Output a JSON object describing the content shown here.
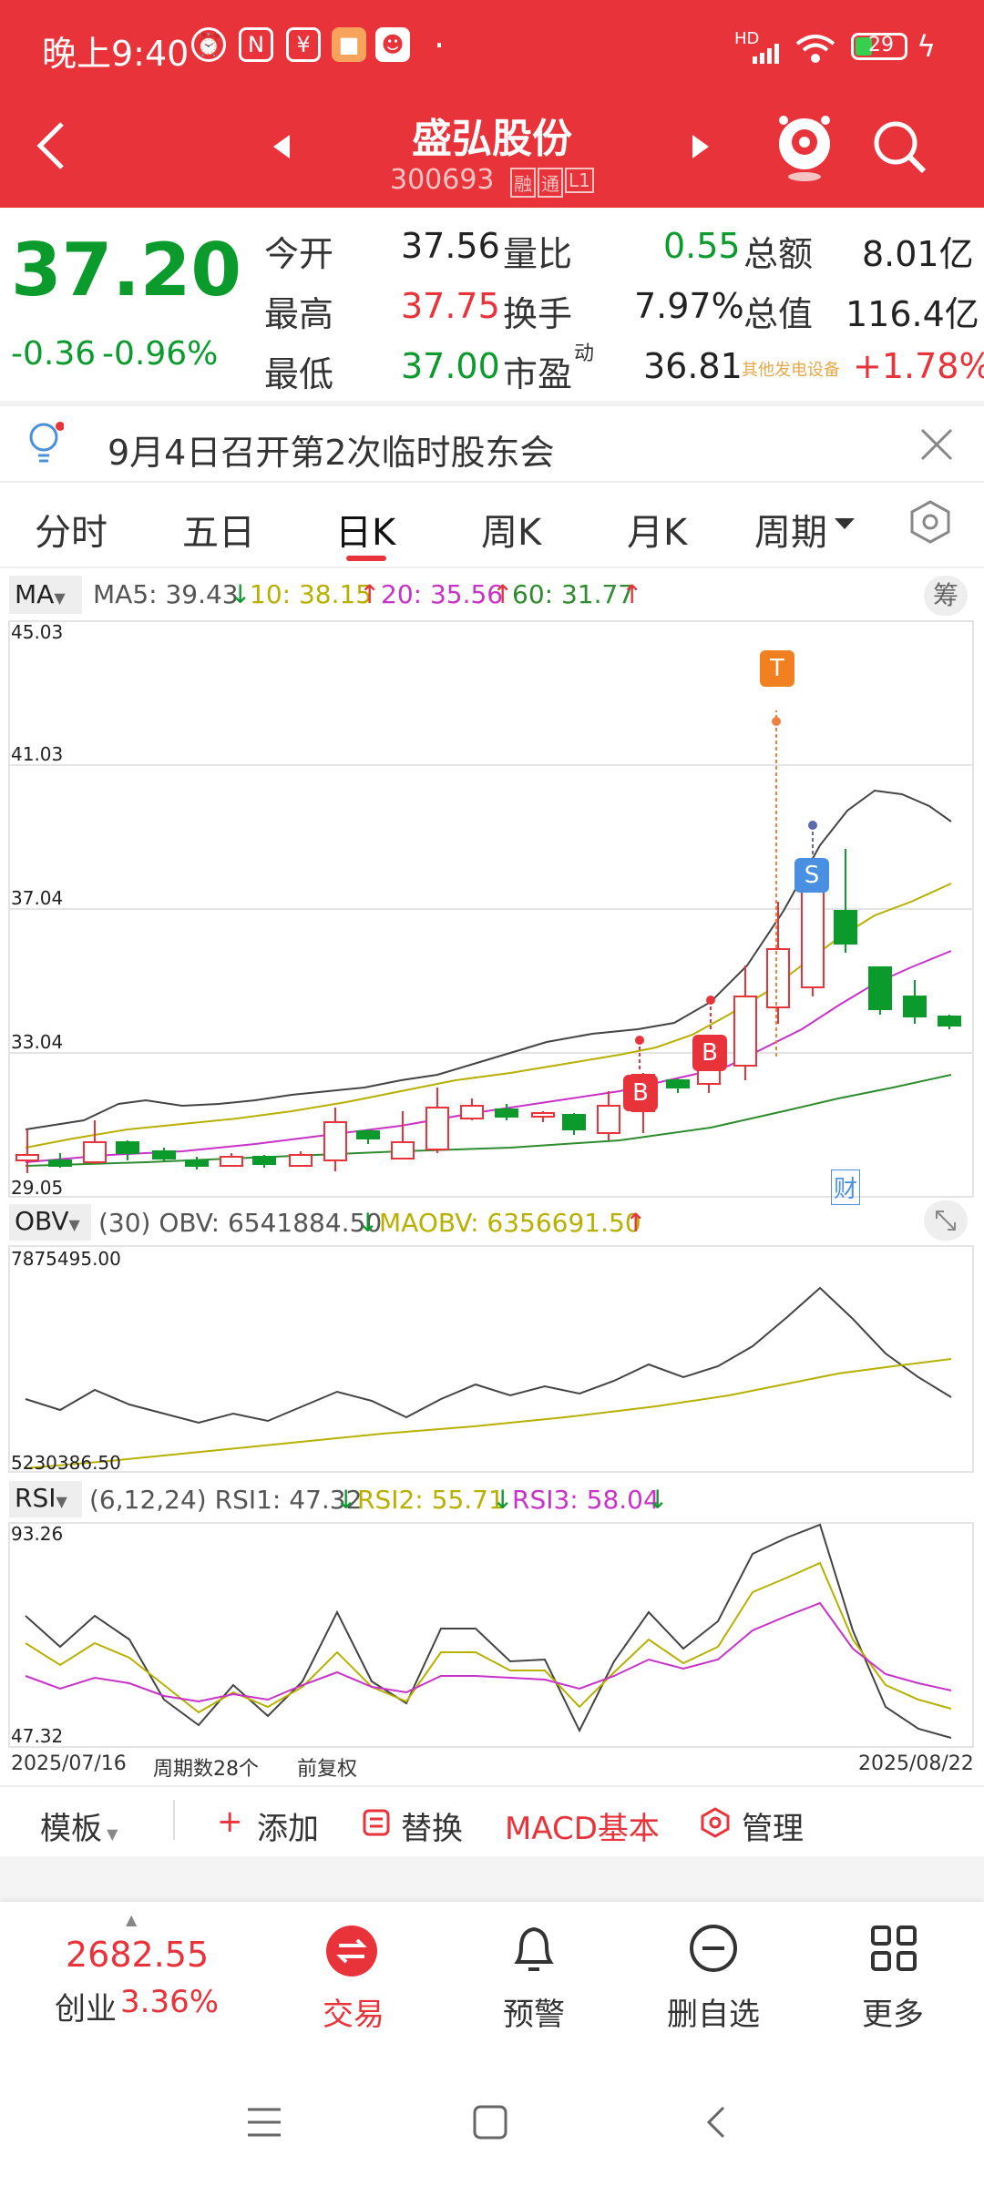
{
  "status": {
    "time": "晚上9:40",
    "network": "HD",
    "battery": "29"
  },
  "header": {
    "stock_name": "盛弘股份",
    "stock_code": "300693",
    "badges": [
      "融",
      "通",
      "L1"
    ]
  },
  "quote": {
    "price": "37.20",
    "change": "-0.36",
    "change_pct": "-0.96%",
    "rows": [
      {
        "l1": "今开",
        "v1": "37.56",
        "l2": "量比",
        "v2": "0.55",
        "l3": "总额",
        "v3": "8.01亿"
      },
      {
        "l1": "最高",
        "v1": "37.75",
        "l2": "换手",
        "v2": "7.97%",
        "l3": "总值",
        "v3": "116.4亿"
      },
      {
        "l1": "最低",
        "v1": "37.00",
        "l2": "市盈",
        "v2": "36.81",
        "l3": "其他发电设备",
        "v3": "+1.78%"
      }
    ],
    "pe_superscript": "动"
  },
  "notice": {
    "text": "9月4日召开第2次临时股东会"
  },
  "tabs": [
    "分时",
    "五日",
    "日K",
    "周K",
    "月K",
    "周期"
  ],
  "ma_legend": {
    "label": "MA",
    "ma5": "MA5: 39.43",
    "ma10": "10: 38.15",
    "ma20": "20: 35.56",
    "ma60": "60: 31.77",
    "chip": "筹"
  },
  "kline": {
    "y_labels": [
      "45.03",
      "41.03",
      "37.04",
      "33.04",
      "29.05"
    ],
    "marker_t": "T",
    "marker_s": "S",
    "marker_b": "B",
    "cai": "财"
  },
  "obv": {
    "label": "OBV",
    "params": "(30) OBV: 6541884.50",
    "ma": "MAOBV: 6356691.50",
    "y_top": "7875495.00",
    "y_bottom": "5230386.50"
  },
  "rsi": {
    "label": "RSI",
    "params": "(6,12,24) RSI1: 47.32",
    "rsi2": "RSI2: 55.71",
    "rsi3": "RSI3: 58.04",
    "y_top": "93.26",
    "y_bottom": "47.32"
  },
  "footer_info": {
    "start": "2025/07/16",
    "count": "周期数28个",
    "adj": "前复权",
    "end": "2025/08/22"
  },
  "toolbar": {
    "template": "模板",
    "add": "添加",
    "replace": "替换",
    "macd": "MACD基本",
    "manage": "管理"
  },
  "bottom": {
    "index_value": "2682.55",
    "index_name": "创业",
    "index_pct": "3.36%",
    "trade": "交易",
    "alert": "预警",
    "remove": "删自选",
    "more": "更多"
  },
  "colors": {
    "red": "#e8333a",
    "green": "#0b9a2c",
    "ma10": "#b8b000",
    "ma20": "#c832c8",
    "ma60": "#2e8b2e"
  }
}
